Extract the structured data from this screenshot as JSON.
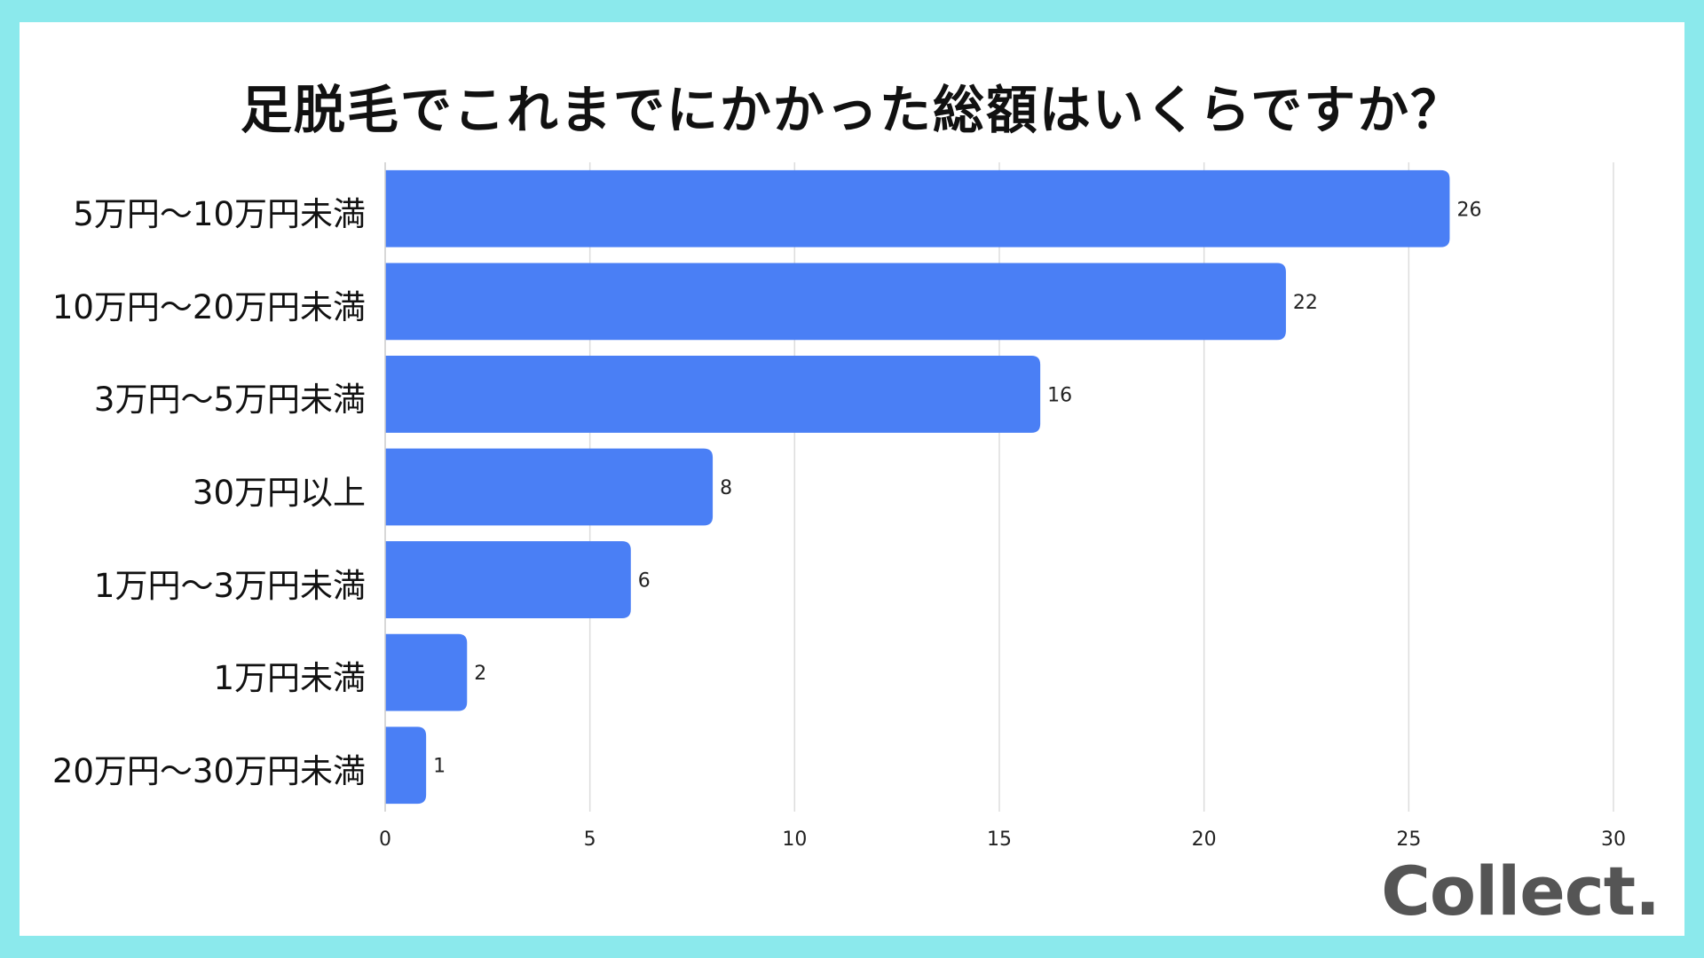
{
  "chart_data": {
    "type": "bar",
    "orientation": "horizontal",
    "title": "足脱毛でこれまでにかかった総額はいくらですか？",
    "categories": [
      "5万円〜10万円未満",
      "10万円〜20万円未満",
      "3万円〜5万円未満",
      "30万円以上",
      "1万円〜3万円未満",
      "1万円未満",
      "20万円〜30万円未満"
    ],
    "values": [
      26,
      22,
      16,
      8,
      6,
      2,
      1
    ],
    "xlim": [
      0,
      30
    ],
    "x_ticks": [
      0,
      5,
      10,
      15,
      20,
      25,
      30
    ],
    "grid": "vertical",
    "bar_color": "#4a7ff5",
    "data_labels": true
  },
  "brand": {
    "logo_text": "Collect."
  },
  "colors": {
    "background": "#8be9ec",
    "card": "#ffffff",
    "bar": "#4a7ff5",
    "grid": "#dddddd"
  }
}
